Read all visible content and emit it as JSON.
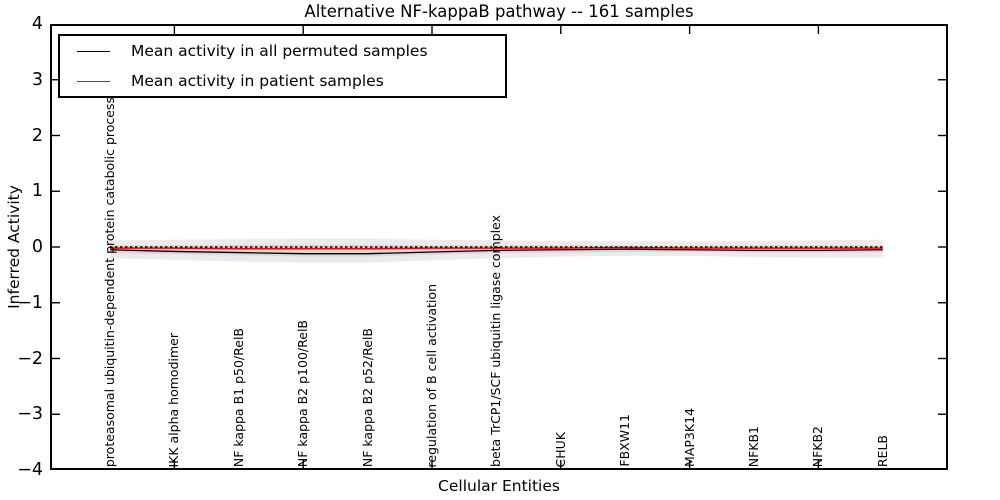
{
  "figure": {
    "title": "Alternative NF-kappaB pathway -- 161 samples",
    "xlabel": "Cellular Entities",
    "ylabel": "Inferred Activity"
  },
  "legend": {
    "entries": [
      {
        "label": "Mean activity in all permuted samples",
        "color": "#000000"
      },
      {
        "label": "Mean activity in patient samples",
        "color": "#ff0000"
      }
    ]
  },
  "chart_data": {
    "type": "line",
    "title": "Alternative NF-kappaB pathway -- 161 samples",
    "xlabel": "Cellular Entities",
    "ylabel": "Inferred Activity",
    "ylim": [
      -4,
      4
    ],
    "ytick_values": [
      4,
      3,
      2,
      1,
      0,
      -1,
      -2,
      -3,
      -4
    ],
    "ytick_labels": [
      "4",
      "3",
      "2",
      "1",
      "0",
      "−1",
      "−2",
      "−3",
      "−4"
    ],
    "x_major_tick_indices": [
      1,
      3,
      5,
      7,
      9,
      11
    ],
    "grid": false,
    "legend_position": "upper left",
    "categories": [
      "proteasomal ubiquitin-dependent protein catabolic process",
      "IKK alpha homodimer",
      "NF kappa B1 p50/RelB",
      "NF kappa B2 p100/RelB",
      "NF kappa B2 p52/RelB",
      "regulation of B cell activation",
      "beta TrCP1/SCF ubiquitin ligase complex",
      "CHUK",
      "FBXW11",
      "MAP3K14",
      "NFKB1",
      "NFKB2",
      "RELB"
    ],
    "series": [
      {
        "name": "Mean activity in all permuted samples",
        "color": "#000000",
        "style": "solid",
        "width": 1.3,
        "values": [
          -0.05,
          -0.08,
          -0.1,
          -0.12,
          -0.12,
          -0.09,
          -0.06,
          -0.05,
          -0.04,
          -0.05,
          -0.06,
          -0.06,
          -0.05
        ]
      },
      {
        "name": "Mean activity in patient samples",
        "color": "#ff0000",
        "style": "solid",
        "width": 1.6,
        "values": [
          -0.02,
          -0.02,
          -0.03,
          -0.03,
          -0.03,
          -0.02,
          -0.02,
          -0.02,
          -0.01,
          -0.02,
          -0.02,
          -0.02,
          -0.02
        ]
      },
      {
        "name": "zero reference (dotted)",
        "color": "#000000",
        "style": "dotted",
        "width": 1.6,
        "values": [
          0,
          0,
          0,
          0,
          0,
          0,
          0,
          0,
          0,
          0,
          0,
          0,
          0
        ]
      }
    ],
    "bands": [
      {
        "name": "permuted activity spread (outer)",
        "color": "#ebebeb",
        "top": [
          0.12,
          0.13,
          0.14,
          0.15,
          0.15,
          0.13,
          0.12,
          0.11,
          0.1,
          0.1,
          0.11,
          0.12,
          0.13
        ],
        "bottom": [
          -0.2,
          -0.23,
          -0.26,
          -0.28,
          -0.28,
          -0.24,
          -0.2,
          -0.17,
          -0.16,
          -0.16,
          -0.18,
          -0.19,
          -0.19
        ]
      },
      {
        "name": "permuted activity spread (inner)",
        "color": "#d9d9d9",
        "top": [
          0.03,
          0.03,
          0.04,
          0.04,
          0.04,
          0.03,
          0.03,
          0.03,
          0.02,
          0.02,
          0.03,
          0.03,
          0.03
        ],
        "bottom": [
          -0.11,
          -0.13,
          -0.15,
          -0.17,
          -0.17,
          -0.14,
          -0.11,
          -0.1,
          -0.09,
          -0.09,
          -0.1,
          -0.1,
          -0.1
        ]
      }
    ]
  }
}
